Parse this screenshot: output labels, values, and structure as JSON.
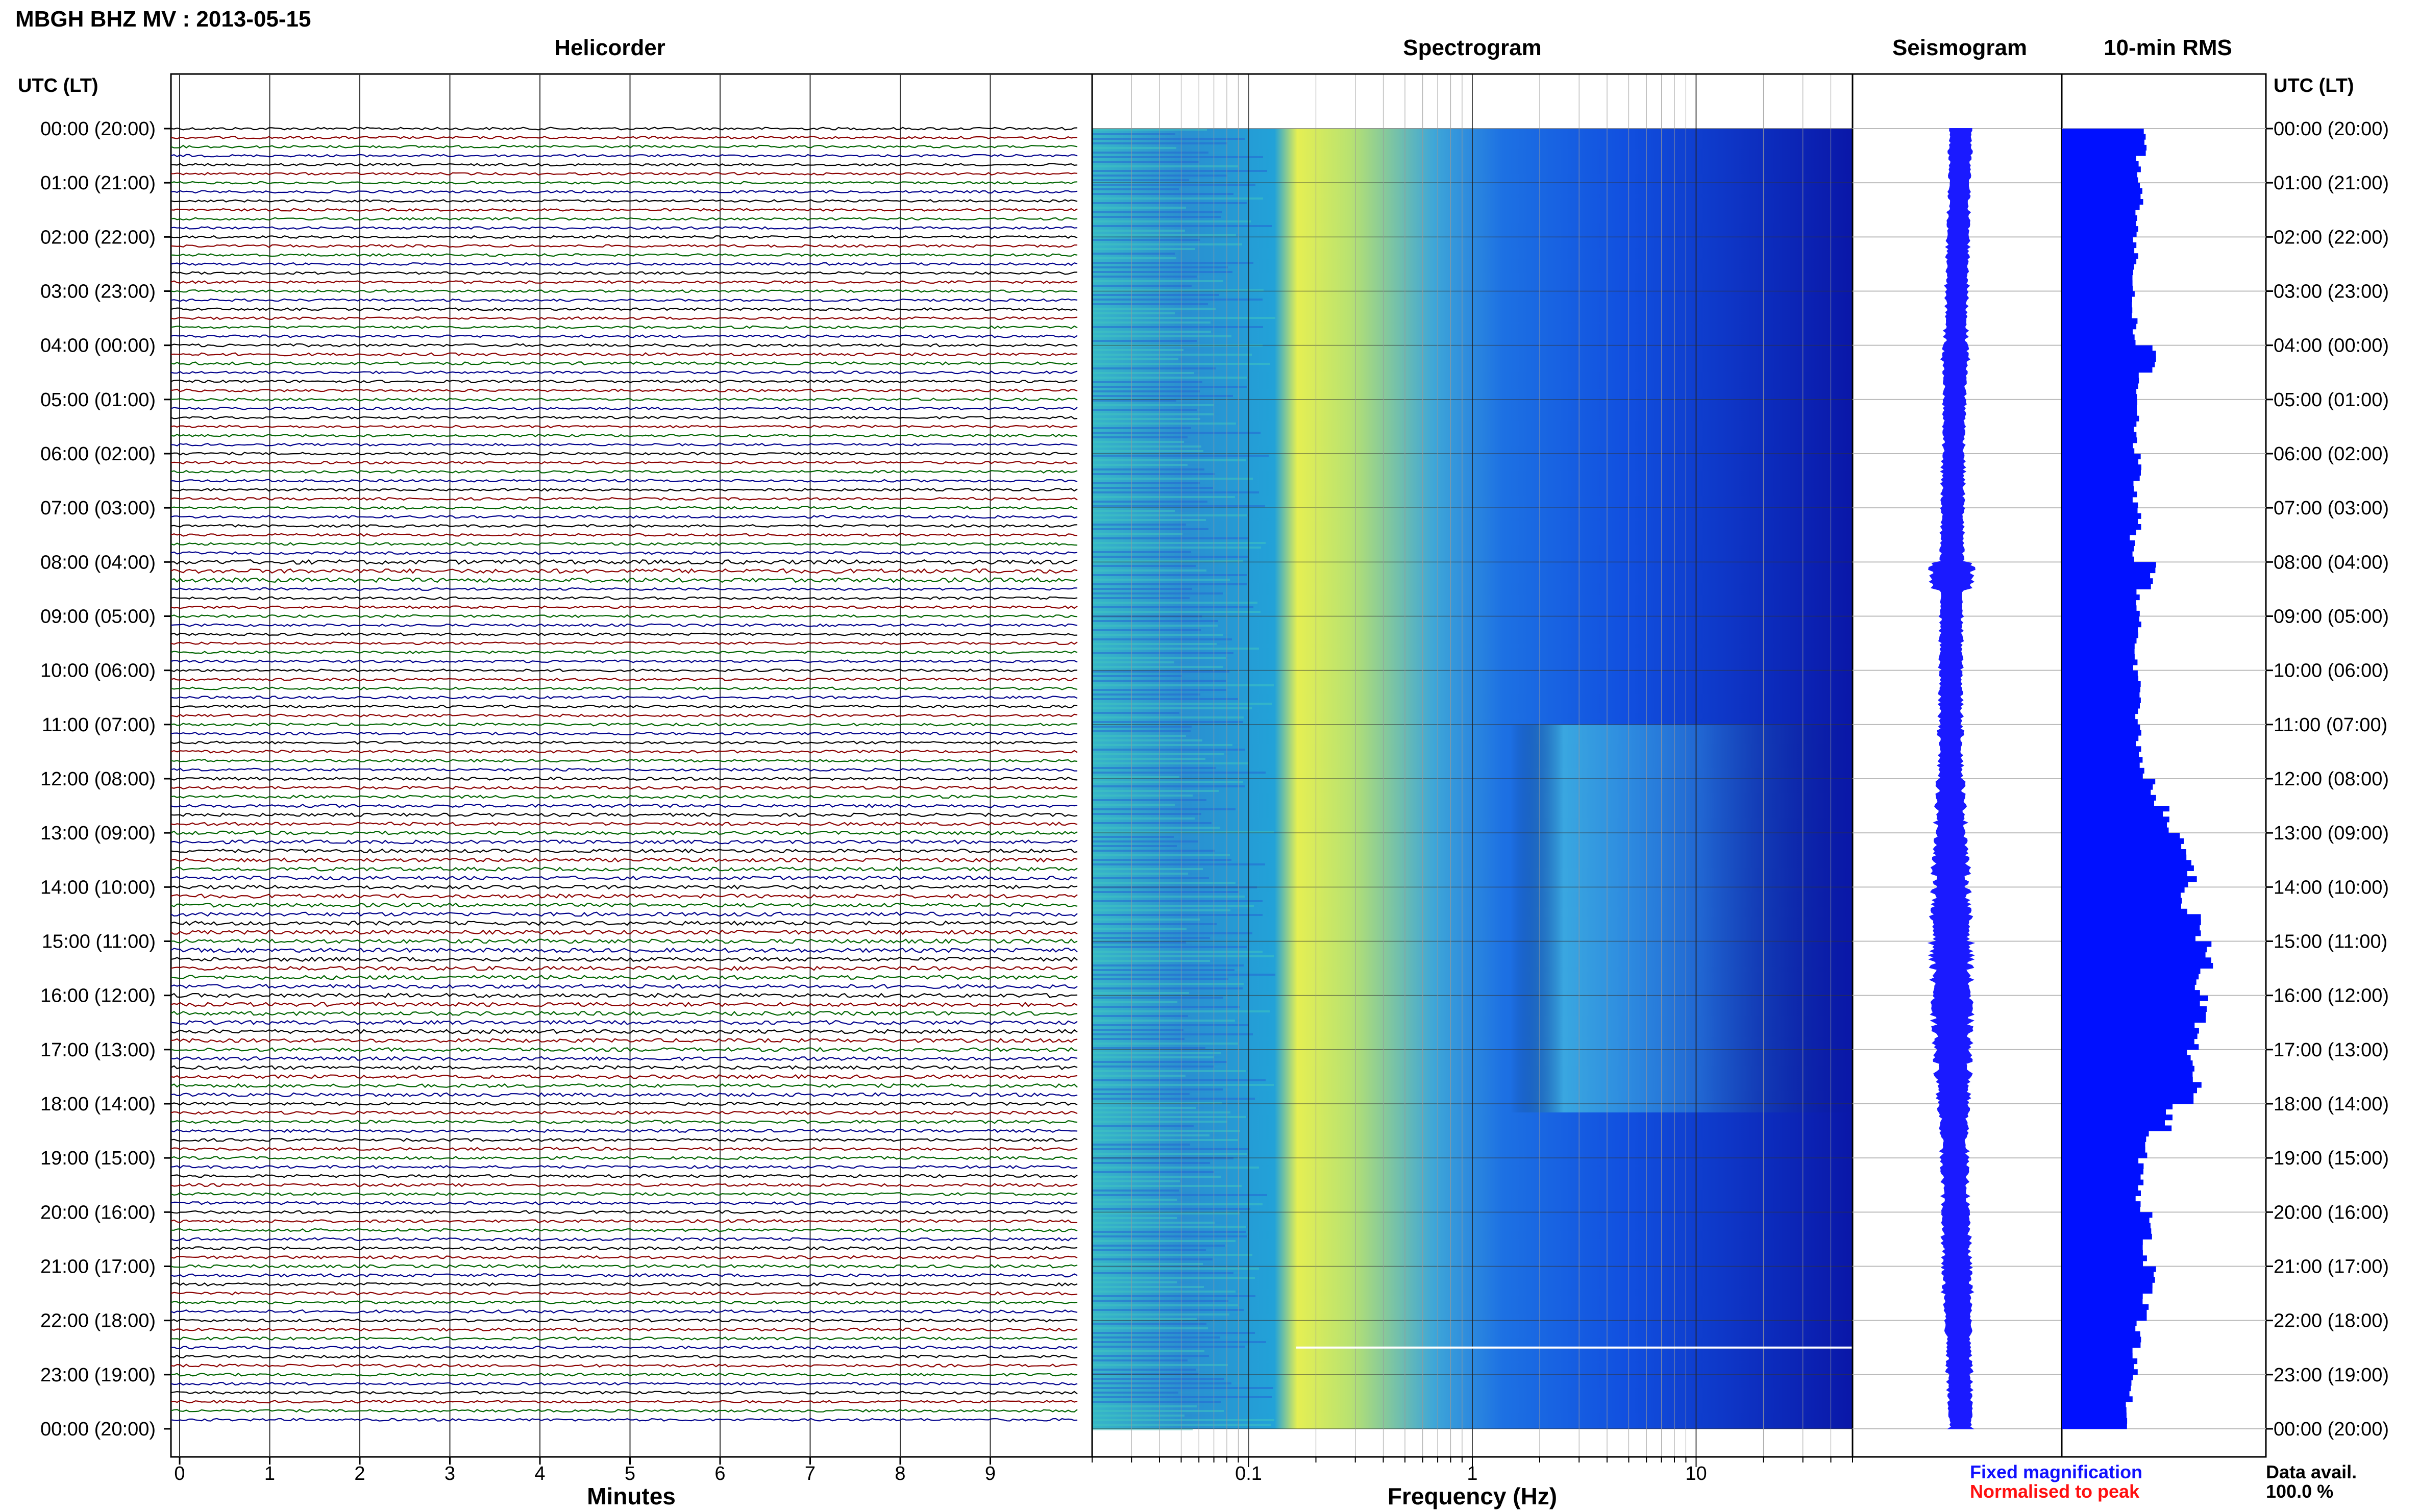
{
  "header": {
    "title": "MBGH BHZ MV : 2013-05-15"
  },
  "panels": {
    "helicorder": "Helicorder",
    "spectrogram": "Spectrogram",
    "seismogram": "Seismogram",
    "rms": "10-min RMS"
  },
  "time_axis": {
    "label_left": "UTC (LT)",
    "label_right": "UTC (LT)",
    "ticks": [
      "00:00 (20:00)",
      "01:00 (21:00)",
      "02:00 (22:00)",
      "03:00 (23:00)",
      "04:00 (00:00)",
      "05:00 (01:00)",
      "06:00 (02:00)",
      "07:00 (03:00)",
      "08:00 (04:00)",
      "09:00 (05:00)",
      "10:00 (06:00)",
      "11:00 (07:00)",
      "12:00 (08:00)",
      "13:00 (09:00)",
      "14:00 (10:00)",
      "15:00 (11:00)",
      "16:00 (12:00)",
      "17:00 (13:00)",
      "18:00 (14:00)",
      "19:00 (15:00)",
      "20:00 (16:00)",
      "21:00 (17:00)",
      "22:00 (18:00)",
      "23:00 (19:00)",
      "00:00 (20:00)"
    ]
  },
  "helicorder_axis": {
    "xlabel": "Minutes",
    "ticks": [
      "0",
      "1",
      "2",
      "3",
      "4",
      "5",
      "6",
      "7",
      "8",
      "9"
    ]
  },
  "spectrogram_axis": {
    "xlabel": "Frequency (Hz)",
    "ticks": [
      "0.1",
      "1",
      "10"
    ],
    "xlim": [
      0.02,
      50
    ],
    "scale": "log"
  },
  "legend": {
    "fixed": "Fixed magnification",
    "fixed_color": "#1010ff",
    "normalised": "Normalised to peak",
    "normalised_color": "#ff1010"
  },
  "availability": {
    "label": "Data avail.",
    "value": "100.0 %"
  },
  "colors": {
    "trace": [
      "#000000",
      "#8b0000",
      "#006400",
      "#00008b"
    ],
    "bar": "#0010ff"
  },
  "chart_data": {
    "type": "bar",
    "title": "10-min RMS",
    "ylabel": "UTC (LT)",
    "x_unit": "hour UTC",
    "x": [
      0,
      0.5,
      1,
      1.5,
      2,
      2.5,
      3,
      3.5,
      4,
      4.5,
      5,
      5.5,
      6,
      6.5,
      7,
      7.5,
      8,
      8.5,
      9,
      9.5,
      10,
      10.5,
      11,
      11.5,
      12,
      12.5,
      13,
      13.5,
      14,
      14.5,
      15,
      15.5,
      16,
      16.5,
      17,
      17.5,
      18,
      18.5,
      19,
      19.5,
      20,
      20.5,
      21,
      21.5,
      22,
      22.5,
      23,
      23.5
    ],
    "values": [
      0.55,
      0.5,
      0.52,
      0.5,
      0.48,
      0.47,
      0.47,
      0.48,
      0.6,
      0.5,
      0.5,
      0.48,
      0.5,
      0.48,
      0.5,
      0.46,
      0.6,
      0.5,
      0.5,
      0.48,
      0.5,
      0.5,
      0.5,
      0.52,
      0.6,
      0.68,
      0.8,
      0.85,
      0.8,
      0.88,
      0.95,
      0.9,
      0.93,
      0.9,
      0.85,
      0.88,
      0.7,
      0.55,
      0.52,
      0.5,
      0.58,
      0.55,
      0.6,
      0.55,
      0.5,
      0.48,
      0.45,
      0.42
    ],
    "series_seismogram_envelope": [
      0.2,
      0.18,
      0.18,
      0.19,
      0.2,
      0.2,
      0.19,
      0.2,
      0.25,
      0.2,
      0.2,
      0.19,
      0.2,
      0.2,
      0.2,
      0.2,
      0.45,
      0.2,
      0.2,
      0.2,
      0.2,
      0.21,
      0.22,
      0.22,
      0.26,
      0.3,
      0.34,
      0.36,
      0.38,
      0.4,
      0.42,
      0.4,
      0.4,
      0.38,
      0.36,
      0.34,
      0.28,
      0.25,
      0.24,
      0.24,
      0.26,
      0.26,
      0.28,
      0.26,
      0.24,
      0.23,
      0.22,
      0.2
    ],
    "grid": true
  }
}
